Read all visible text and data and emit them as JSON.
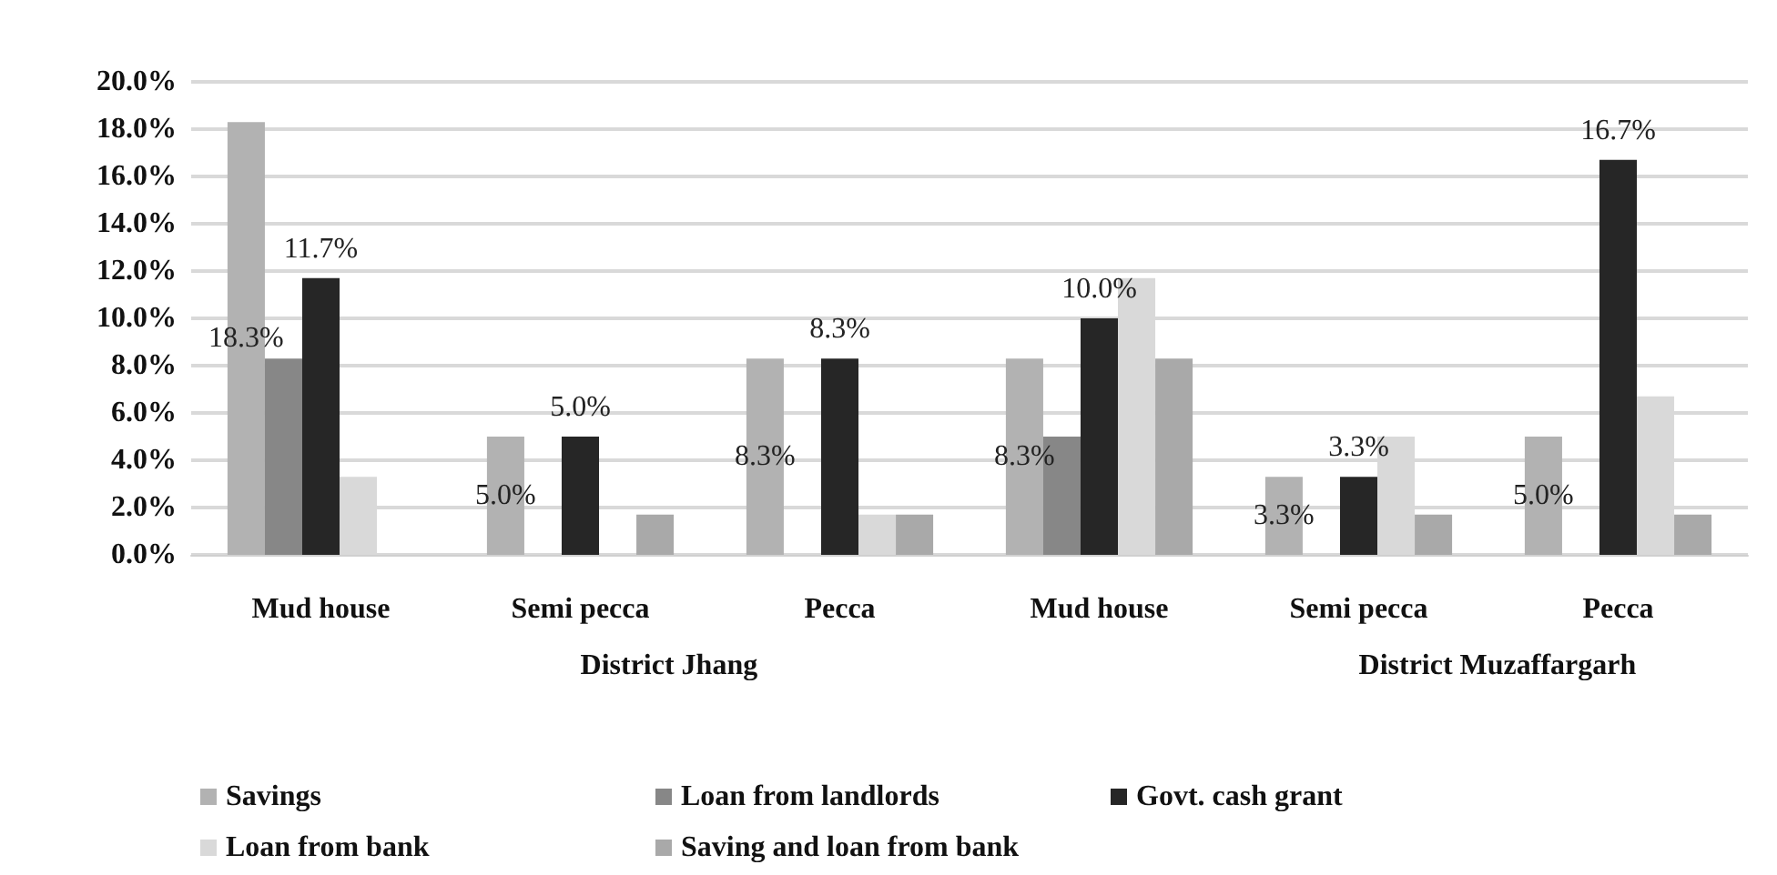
{
  "chart_data": {
    "type": "bar",
    "categories": [
      "Mud house",
      "Semi pecca",
      "Pecca",
      "Mud house",
      "Semi pecca",
      "Pecca"
    ],
    "annotations": [
      "District Jhang",
      "District Muzaffargarh"
    ],
    "series": [
      {
        "name": "Savings",
        "color": "#b2b2b2",
        "values": [
          18.3,
          5.0,
          8.3,
          8.3,
          3.3,
          5.0
        ],
        "value_labels": [
          "18.3%",
          "5.0%",
          "8.3%",
          "8.3%",
          "3.3%",
          "5.0%"
        ]
      },
      {
        "name": "Loan from landlords",
        "color": "#878787",
        "values": [
          8.3,
          null,
          null,
          5.0,
          null,
          null
        ]
      },
      {
        "name": "Govt. cash grant",
        "color": "#262626",
        "values": [
          11.7,
          5.0,
          8.3,
          10.0,
          3.3,
          16.7
        ],
        "value_labels": [
          "11.7%",
          "5.0%",
          "8.3%",
          "10.0%",
          "3.3%",
          "16.7%"
        ]
      },
      {
        "name": "Loan from bank",
        "color": "#d9d9d9",
        "values": [
          3.3,
          null,
          1.7,
          11.7,
          5.0,
          6.7
        ]
      },
      {
        "name": "Saving and loan from bank",
        "color": "#a9a9a9",
        "values": [
          null,
          1.7,
          1.7,
          8.3,
          1.7,
          1.7
        ]
      }
    ],
    "ylim": [
      0,
      20
    ],
    "yticks": [
      {
        "value": 0,
        "label": "0.0%"
      },
      {
        "value": 2,
        "label": "2.0%"
      },
      {
        "value": 4,
        "label": "4.0%"
      },
      {
        "value": 6,
        "label": "6.0%"
      },
      {
        "value": 8,
        "label": "8.0%"
      },
      {
        "value": 10,
        "label": "10.0%"
      },
      {
        "value": 12,
        "label": "12.0%"
      },
      {
        "value": 14,
        "label": "14.0%"
      },
      {
        "value": 16,
        "label": "16.0%"
      },
      {
        "value": 18,
        "label": "18.0%"
      },
      {
        "value": 20,
        "label": "20.0%"
      }
    ],
    "grid": "y",
    "legend": "bottom"
  }
}
